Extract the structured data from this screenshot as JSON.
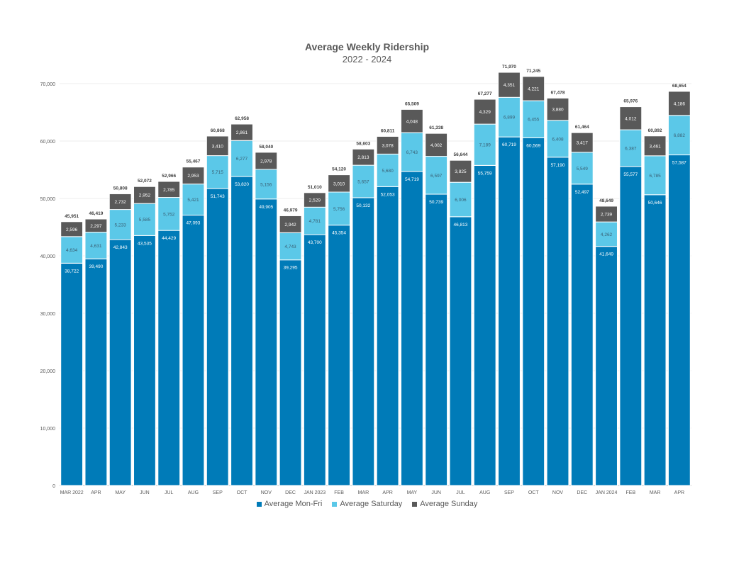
{
  "chart_data": {
    "type": "bar",
    "stacked": true,
    "title": "Average Weekly Ridership",
    "subtitle": "2022 - 2024",
    "xlabel": "",
    "ylabel": "",
    "ylim": [
      0,
      70000
    ],
    "yticks": [
      "0",
      "10,000",
      "20,000",
      "30,000",
      "40,000",
      "50,000",
      "60,000",
      "70,000"
    ],
    "grid": true,
    "legend_position": "bottom",
    "categories": [
      "MAR 2022",
      "APR",
      "MAY",
      "JUN",
      "JUL",
      "AUG",
      "SEP",
      "OCT",
      "NOV",
      "DEC",
      "JAN 2023",
      "FEB",
      "MAR",
      "APR",
      "MAY",
      "JUN",
      "JUL",
      "AUG",
      "SEP",
      "OCT",
      "NOV",
      "DEC",
      "JAN 2024",
      "FEB",
      "MAR",
      "APR"
    ],
    "series": [
      {
        "name": "Average Mon-Fri",
        "color": "#007BB8",
        "values": [
          38722,
          39490,
          42843,
          43535,
          44429,
          47093,
          51743,
          53820,
          49905,
          39295,
          43700,
          45354,
          50132,
          52053,
          54719,
          50739,
          46813,
          55759,
          60719,
          60569,
          57190,
          52497,
          41649,
          55577,
          50646,
          57587
        ]
      },
      {
        "name": "Average Saturday",
        "color": "#5BC8E8",
        "values": [
          4634,
          4631,
          5233,
          5585,
          5752,
          5421,
          5715,
          6277,
          5156,
          4743,
          4781,
          5756,
          5657,
          5680,
          6743,
          6597,
          6006,
          7189,
          6899,
          6455,
          6408,
          5549,
          4262,
          6387,
          6785,
          6882
        ]
      },
      {
        "name": "Average Sunday",
        "color": "#595959",
        "values": [
          2596,
          2297,
          2732,
          2952,
          2785,
          2953,
          3410,
          2861,
          2978,
          2942,
          2529,
          3010,
          2813,
          3078,
          4048,
          4002,
          3825,
          4329,
          4351,
          4221,
          3880,
          3417,
          2739,
          4012,
          3461,
          4186
        ]
      }
    ],
    "totals": [
      "45,951",
      "46,419",
      "50,808",
      "52,072",
      "52,966",
      "55,467",
      "60,868",
      "62,958",
      "58,040",
      "46,979",
      "51,010",
      "54,120",
      "58,603",
      "60,811",
      "65,509",
      "61,338",
      "56,644",
      "67,277",
      "71,970",
      "71,245",
      "67,478",
      "61,464",
      "48,649",
      "65,976",
      "60,892",
      "68,654"
    ]
  }
}
